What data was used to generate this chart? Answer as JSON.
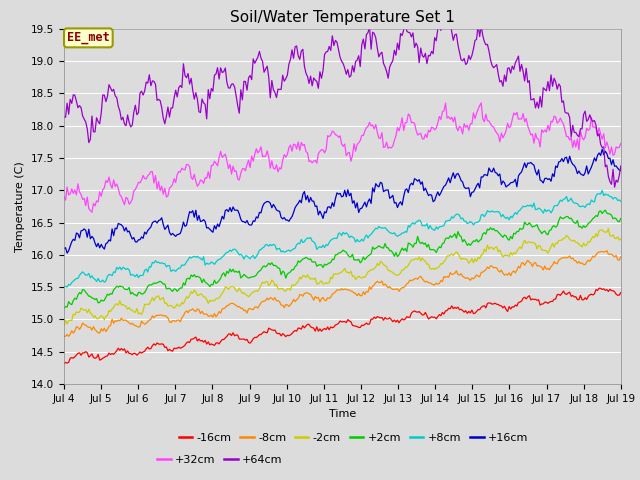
{
  "title": "Soil/Water Temperature Set 1",
  "xlabel": "Time",
  "ylabel": "Temperature (C)",
  "ylim": [
    14.0,
    19.5
  ],
  "x_start": 4,
  "x_end": 19,
  "x_ticks": [
    4,
    5,
    6,
    7,
    8,
    9,
    10,
    11,
    12,
    13,
    14,
    15,
    16,
    17,
    18,
    19
  ],
  "x_tick_labels": [
    "Jul 4",
    "Jul 5",
    "Jul 6",
    "Jul 7",
    "Jul 8",
    "Jul 9",
    "Jul 10",
    "Jul 11",
    "Jul 12",
    "Jul 13",
    "Jul 14",
    "Jul 15",
    "Jul 16",
    "Jul 17",
    "Jul 18",
    "Jul 19"
  ],
  "bg_color": "#dcdcdc",
  "grid_color": "#ffffff",
  "annotation_text": "EE_met",
  "annotation_bg": "#ffffcc",
  "annotation_border": "#999900",
  "annotation_text_color": "#8b0000",
  "series": [
    {
      "label": "-16cm",
      "color": "#ff0000",
      "start": 14.38,
      "end": 15.45,
      "amp": 0.06,
      "noise": 0.02
    },
    {
      "label": "-8cm",
      "color": "#ff8800",
      "start": 14.8,
      "end": 16.02,
      "amp": 0.07,
      "noise": 0.02
    },
    {
      "label": "-2cm",
      "color": "#cccc00",
      "start": 15.02,
      "end": 16.33,
      "amp": 0.09,
      "noise": 0.025
    },
    {
      "label": "+2cm",
      "color": "#00cc00",
      "start": 15.28,
      "end": 16.62,
      "amp": 0.09,
      "noise": 0.025
    },
    {
      "label": "+8cm",
      "color": "#00cccc",
      "start": 15.58,
      "end": 16.92,
      "amp": 0.08,
      "noise": 0.02
    },
    {
      "label": "+16cm",
      "color": "#0000cc",
      "start": 16.18,
      "end": 17.48,
      "amp": 0.15,
      "noise": 0.04
    },
    {
      "label": "+32cm",
      "color": "#ff44ff",
      "start": 16.83,
      "end": 17.75,
      "amp": 0.22,
      "noise": 0.05
    },
    {
      "label": "+64cm",
      "color": "#9900cc",
      "start": 18.1,
      "end": 17.25,
      "amp": 0.35,
      "noise": 0.06
    }
  ],
  "title_fontsize": 11,
  "axis_fontsize": 8,
  "tick_fontsize": 7.5,
  "legend_fontsize": 8
}
